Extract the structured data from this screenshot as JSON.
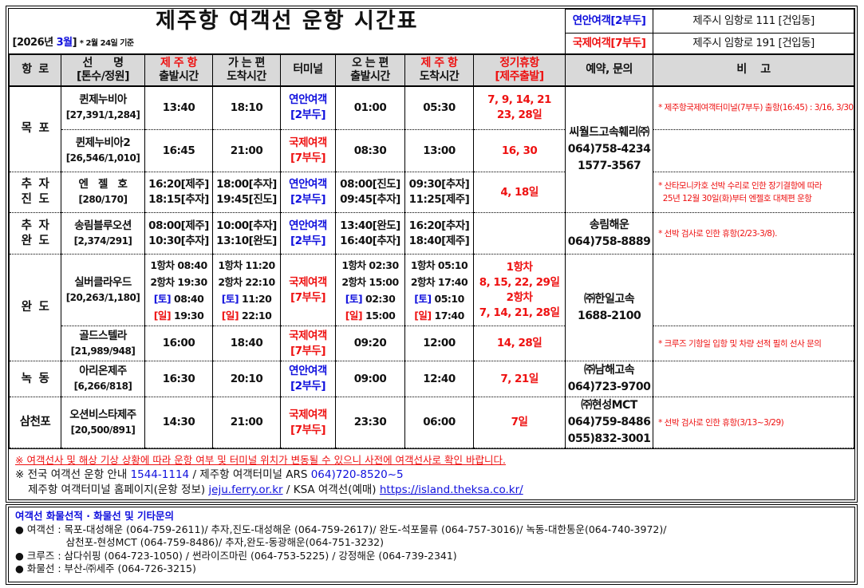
{
  "title": "제주항 여객선 운항 시간표",
  "period": {
    "open": "[2026년 ",
    "month": "3월",
    "close": "]",
    "basis": "* 2월 24일 기준"
  },
  "terminals": [
    {
      "label": "연안여객[2부두]",
      "address": "제주시 임항로 111 [건입동]",
      "color": "#1010dd"
    },
    {
      "label": "국제여객[7부두]",
      "address": "제주시 임항로 191 [건입동]",
      "color": "#ee1111"
    }
  ],
  "headers": [
    {
      "l1": "항  로",
      "l2": ""
    },
    {
      "l1": "선      명",
      "l2": "[톤수/정원]"
    },
    {
      "l1": "제 주 항",
      "l2": "출발시간",
      "red": true
    },
    {
      "l1": "가 는 편",
      "l2": "도착시간"
    },
    {
      "l1": "터미널",
      "l2": ""
    },
    {
      "l1": "오 는 편",
      "l2": "출발시간"
    },
    {
      "l1": "제 주 항",
      "l2": "도착시간",
      "red": true
    },
    {
      "l1": "정기휴항",
      "l2": "[제주출발]",
      "allred": true
    },
    {
      "l1": "예약, 문의",
      "l2": ""
    },
    {
      "l1": "비    고",
      "l2": ""
    }
  ],
  "rows": [
    {
      "route": [
        "목  포"
      ],
      "route_span": 2,
      "ship": [
        "퀸제누비아",
        "[27,391/1,284]"
      ],
      "dep": [
        "13:40"
      ],
      "arr": [
        "18:10"
      ],
      "terminal": [
        "연안여객",
        "[2부두]"
      ],
      "tcolor": "blue",
      "rdep": [
        "01:00"
      ],
      "rarr": [
        "05:30"
      ],
      "closed": [
        "7, 9, 14, 21",
        "23, 28일"
      ],
      "contact": [
        "씨월드고속훼리㈜",
        "064)758-4234",
        "1577-3567"
      ],
      "contact_span": 3,
      "remark": [
        "* 제주항국제여객터미널(7부두) 출항(16:45) : 3/16, 3/30"
      ]
    },
    {
      "ship": [
        "퀸제누비아2",
        "[26,546/1,010]"
      ],
      "dep": [
        "16:45"
      ],
      "arr": [
        "21:00"
      ],
      "terminal": [
        "국제여객",
        "[7부두]"
      ],
      "tcolor": "red",
      "rdep": [
        "08:30"
      ],
      "rarr": [
        "13:00"
      ],
      "closed": [
        "16, 30"
      ],
      "remark": []
    },
    {
      "route": [
        "추  자",
        "진  도"
      ],
      "route_span": 1,
      "ship": [
        "엔   젤   호",
        "[280/170]"
      ],
      "dep": [
        "16:20[제주]",
        "18:15[추자]"
      ],
      "arr": [
        "18:00[추자]",
        "19:45[진도]"
      ],
      "terminal": [
        "연안여객",
        "[2부두]"
      ],
      "tcolor": "blue",
      "rdep": [
        "08:00[진도]",
        "09:45[추자]"
      ],
      "rarr": [
        "09:30[추자]",
        "11:25[제주]"
      ],
      "closed": [
        "4, 18일"
      ],
      "remark": [
        "* 산타모니카호 선박 수리로 인한 장기결항에 따라",
        "  25년 12월 30일(화)부터 엔젤호 대체편 운항"
      ]
    },
    {
      "route": [
        "추  자",
        "완  도"
      ],
      "route_span": 1,
      "ship": [
        "송림블루오션",
        "[2,374/291]"
      ],
      "dep": [
        "08:00[제주]",
        "10:30[추자]"
      ],
      "arr": [
        "10:00[추자]",
        "13:10[완도]"
      ],
      "terminal": [
        "연안여객",
        "[2부두]"
      ],
      "tcolor": "blue",
      "rdep": [
        "13:40[완도]",
        "16:40[추자]"
      ],
      "rarr": [
        "16:20[추자]",
        "18:40[제주]"
      ],
      "closed": [],
      "contact": [
        "송림해운",
        "064)758-8889"
      ],
      "contact_span": 1,
      "remark": [
        "* 선박 검사로 인한 휴항(2/23-3/8)."
      ]
    },
    {
      "route": [
        "완  도"
      ],
      "route_span": 2,
      "ship": [
        "실버클라우드",
        "[20,263/1,180]"
      ],
      "dep": [
        "1항차 08:40",
        "2항차 19:30",
        {
          "tag": "[토]",
          "tc": "blue",
          "t": " 08:40"
        },
        {
          "tag": "[일]",
          "tc": "red",
          "t": " 19:30"
        }
      ],
      "arr": [
        "1항차 11:20",
        "2항차 22:10",
        {
          "tag": "[토]",
          "tc": "blue",
          "t": " 11:20"
        },
        {
          "tag": "[일]",
          "tc": "red",
          "t": " 22:10"
        }
      ],
      "terminal": [
        "국제여객",
        "[7부두]"
      ],
      "tcolor": "red",
      "rdep": [
        "1항차 02:30",
        "2항차 15:00",
        {
          "tag": "[토]",
          "tc": "blue",
          "t": " 02:30"
        },
        {
          "tag": "[일]",
          "tc": "red",
          "t": " 15:00"
        }
      ],
      "rarr": [
        "1항차 05:10",
        "2항차 17:40",
        {
          "tag": "[토]",
          "tc": "blue",
          "t": " 05:10"
        },
        {
          "tag": "[일]",
          "tc": "red",
          "t": " 17:40"
        }
      ],
      "closed": [
        "1항차",
        "8, 15, 22, 29일",
        "2항차",
        "7, 14, 21, 28일"
      ],
      "contact": [
        "㈜한일고속",
        "1688-2100"
      ],
      "contact_span": 2,
      "remark": [],
      "tall": true
    },
    {
      "ship": [
        "골드스텔라",
        "[21,989/948]"
      ],
      "dep": [
        "16:00"
      ],
      "arr": [
        "18:40"
      ],
      "terminal": [
        "국제여객",
        "[7부두]"
      ],
      "tcolor": "red",
      "rdep": [
        "09:20"
      ],
      "rarr": [
        "12:00"
      ],
      "closed": [
        "14, 28일"
      ],
      "remark": [
        "* 크루즈 기항일 입항 및 차량 선적 필히 선사 문의"
      ]
    },
    {
      "route": [
        "녹  동"
      ],
      "route_span": 1,
      "ship": [
        "아리온제주",
        "[6,266/818]"
      ],
      "dep": [
        "16:30"
      ],
      "arr": [
        "20:10"
      ],
      "terminal": [
        "연안여객",
        "[2부두]"
      ],
      "tcolor": "blue",
      "rdep": [
        "09:00"
      ],
      "rarr": [
        "12:40"
      ],
      "closed": [
        "7, 21일"
      ],
      "contact": [
        "㈜남해고속",
        "064)723-9700"
      ],
      "contact_span": 1,
      "remark": []
    },
    {
      "route": [
        "삼천포"
      ],
      "route_span": 1,
      "ship": [
        "오션비스타제주",
        "[20,500/891]"
      ],
      "dep": [
        "14:30"
      ],
      "arr": [
        "21:00"
      ],
      "terminal": [
        "국제여객",
        "[7부두]"
      ],
      "tcolor": "red",
      "rdep": [
        "23:30"
      ],
      "rarr": [
        "06:00"
      ],
      "closed": [
        "7일"
      ],
      "contact": [
        "㈜현성MCT",
        "064)759-8486",
        "055)832-3001"
      ],
      "contact_span": 1,
      "remark": [
        "* 선박 검사로 인한 휴항(3/13~3/29)"
      ]
    }
  ],
  "notes": {
    "warning": "※ 여객선사 및 해상 기상 상황에 따라 운항 여부 및 터미널 위치가 변동될 수 있으니 사전에 여객선사로 확인 바랍니다.",
    "info_prefix": "※ 전국 여객선 운항 안내 ",
    "info_phone": "1544-1114",
    "info_mid": " / 제주항 여객터미널 ARS ",
    "ars_phone": "064)720-8520~5",
    "homepage_label": "제주항 여객터미널 홈페이지(운항 정보) ",
    "homepage_link": "jeju.ferry.or.kr",
    "ksa_label": " / KSA 여객선(예매) ",
    "ksa_link": "https://island.theksa.co.kr/"
  },
  "bottom": {
    "title": "여객선 화물선적 · 화물선 및 기타문의",
    "lines": [
      "● 여객선 : 목포-대성해운 (064-759-2611)/ 추자,진도-대성해운 (064-759-2617)/ 완도-석포물류 (064-757-3016)/ 녹동-대한통운(064-740-3972)/",
      "                삼천포-현성MCT (064-759-8486)/ 추자,완도-동광해운(064-751-3232)",
      "● 크루즈 : 삼다쉬핑 (064-723-1050) / 썬라이즈마린 (064-753-5225) / 강정해운 (064-739-2341)",
      "● 화물선 : 부산-㈜세주 (064-726-3215)"
    ]
  }
}
